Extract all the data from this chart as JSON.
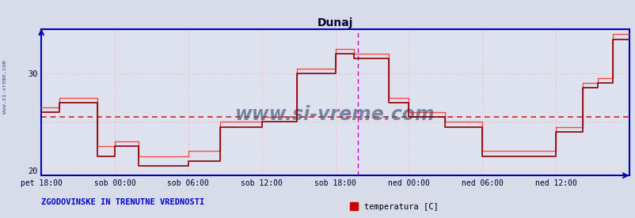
{
  "title": "Dunaj",
  "xlabel_ticks": [
    "pet 18:00",
    "sob 00:00",
    "sob 06:00",
    "sob 12:00",
    "sob 18:00",
    "ned 00:00",
    "ned 06:00",
    "ned 12:00"
  ],
  "ylim": [
    19.5,
    34.5
  ],
  "xlim": [
    0,
    576
  ],
  "background_color": "#d8dce8",
  "plot_bg_color": "#dde2ee",
  "grid_color": "#ffaaaa",
  "line_color_hist": "#880000",
  "line_color_curr": "#ff4444",
  "axis_color": "#0000bb",
  "title_color": "#000033",
  "tick_label_color": "#000033",
  "watermark_text": "www.si-vreme.com",
  "watermark_color": "#445577",
  "sidebar_text": "www.si-vreme.com",
  "bottom_left_text": "ZGODOVINSKE IN TRENUTNE VREDNOSTI",
  "legend_label": "temperatura [C]",
  "legend_color": "#cc0000",
  "avg_line_y": 25.5,
  "avg_line_color": "#cc2222",
  "vline_x": 310,
  "vline_color": "#cc00cc",
  "tick_positions_x": [
    0,
    72,
    144,
    216,
    288,
    360,
    432,
    504
  ],
  "hist_data": [
    [
      0,
      26.0
    ],
    [
      18,
      26.0
    ],
    [
      18,
      27.0
    ],
    [
      55,
      27.0
    ],
    [
      55,
      21.5
    ],
    [
      72,
      21.5
    ],
    [
      72,
      22.5
    ],
    [
      95,
      22.5
    ],
    [
      95,
      20.5
    ],
    [
      144,
      20.5
    ],
    [
      144,
      21.0
    ],
    [
      175,
      21.0
    ],
    [
      175,
      24.5
    ],
    [
      216,
      24.5
    ],
    [
      216,
      25.0
    ],
    [
      250,
      25.0
    ],
    [
      250,
      30.0
    ],
    [
      288,
      30.0
    ],
    [
      288,
      32.0
    ],
    [
      306,
      32.0
    ],
    [
      306,
      31.5
    ],
    [
      340,
      31.5
    ],
    [
      340,
      27.0
    ],
    [
      360,
      27.0
    ],
    [
      360,
      25.5
    ],
    [
      395,
      25.5
    ],
    [
      395,
      24.5
    ],
    [
      432,
      24.5
    ],
    [
      432,
      21.5
    ],
    [
      460,
      21.5
    ],
    [
      460,
      21.5
    ],
    [
      504,
      21.5
    ],
    [
      504,
      24.0
    ],
    [
      530,
      24.0
    ],
    [
      530,
      28.5
    ],
    [
      545,
      28.5
    ],
    [
      545,
      29.0
    ],
    [
      560,
      29.0
    ],
    [
      560,
      33.5
    ],
    [
      576,
      33.5
    ]
  ],
  "curr_data": [
    [
      0,
      26.5
    ],
    [
      18,
      26.5
    ],
    [
      18,
      27.5
    ],
    [
      55,
      27.5
    ],
    [
      55,
      22.5
    ],
    [
      72,
      22.5
    ],
    [
      72,
      23.0
    ],
    [
      95,
      23.0
    ],
    [
      95,
      21.5
    ],
    [
      144,
      21.5
    ],
    [
      144,
      22.0
    ],
    [
      175,
      22.0
    ],
    [
      175,
      25.0
    ],
    [
      216,
      25.0
    ],
    [
      216,
      25.5
    ],
    [
      250,
      25.5
    ],
    [
      250,
      30.5
    ],
    [
      288,
      30.5
    ],
    [
      288,
      32.5
    ],
    [
      306,
      32.5
    ],
    [
      306,
      32.0
    ],
    [
      340,
      32.0
    ],
    [
      340,
      27.5
    ],
    [
      360,
      27.5
    ],
    [
      360,
      26.0
    ],
    [
      395,
      26.0
    ],
    [
      395,
      25.0
    ],
    [
      432,
      25.0
    ],
    [
      432,
      22.0
    ],
    [
      460,
      22.0
    ],
    [
      460,
      22.0
    ],
    [
      504,
      22.0
    ],
    [
      504,
      24.5
    ],
    [
      530,
      24.5
    ],
    [
      530,
      29.0
    ],
    [
      545,
      29.0
    ],
    [
      545,
      29.5
    ],
    [
      560,
      29.5
    ],
    [
      560,
      34.0
    ],
    [
      576,
      34.0
    ]
  ]
}
